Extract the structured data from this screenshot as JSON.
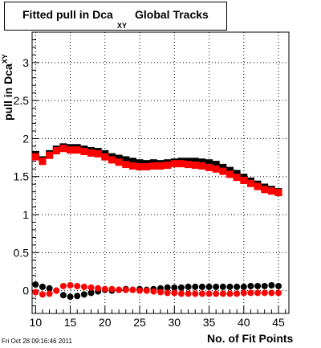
{
  "title": {
    "main": "Fitted pull in Dca",
    "subscript": "XY",
    "rest": "Global Tracks"
  },
  "timestamp": "Fri Oct 28 09:16:46 2011",
  "chart_data": {
    "type": "scatter",
    "title": "Fitted pull in Dca XY Global Tracks",
    "xlabel": "No. of Fit Points",
    "ylabel": "pull in Dca",
    "ylabel_subscript": "XY",
    "xlim": [
      9.5,
      46.5
    ],
    "ylim": [
      -0.3,
      3.4
    ],
    "xticks": [
      10,
      15,
      20,
      25,
      30,
      35,
      40,
      45
    ],
    "yticks": [
      0,
      0.5,
      1,
      1.5,
      2,
      2.5,
      3
    ],
    "ytick_labels": [
      "0",
      "0.5",
      "1",
      "1.5",
      "2",
      "2.5",
      "3"
    ],
    "grid": true,
    "x": [
      10,
      11,
      12,
      13,
      14,
      15,
      16,
      17,
      18,
      19,
      20,
      21,
      22,
      23,
      24,
      25,
      26,
      27,
      28,
      29,
      30,
      31,
      32,
      33,
      34,
      35,
      36,
      37,
      38,
      39,
      40,
      41,
      42,
      43,
      44,
      45
    ],
    "series": [
      {
        "color": "#000000",
        "values": [
          1.79,
          1.72,
          1.8,
          1.86,
          1.89,
          1.88,
          1.88,
          1.86,
          1.84,
          1.83,
          1.8,
          1.76,
          1.74,
          1.72,
          1.7,
          1.68,
          1.67,
          1.68,
          1.67,
          1.68,
          1.69,
          1.7,
          1.7,
          1.7,
          1.69,
          1.68,
          1.66,
          1.62,
          1.58,
          1.54,
          1.49,
          1.44,
          1.4,
          1.36,
          1.33,
          1.3
        ]
      },
      {
        "color": "#ff0000",
        "values": [
          1.76,
          1.7,
          1.78,
          1.84,
          1.87,
          1.85,
          1.85,
          1.83,
          1.81,
          1.8,
          1.76,
          1.72,
          1.69,
          1.66,
          1.64,
          1.63,
          1.63,
          1.64,
          1.64,
          1.65,
          1.67,
          1.67,
          1.66,
          1.65,
          1.64,
          1.62,
          1.6,
          1.57,
          1.53,
          1.49,
          1.45,
          1.41,
          1.37,
          1.33,
          1.31,
          1.29
        ]
      },
      {
        "color": "#000000",
        "values": [
          0.08,
          0.05,
          0.03,
          0.0,
          -0.06,
          -0.08,
          -0.07,
          -0.05,
          -0.03,
          -0.01,
          0.01,
          0.0,
          0.01,
          0.02,
          0.01,
          0.02,
          0.01,
          0.02,
          0.03,
          0.04,
          0.04,
          0.04,
          0.05,
          0.05,
          0.05,
          0.05,
          0.05,
          0.05,
          0.05,
          0.05,
          0.05,
          0.06,
          0.06,
          0.06,
          0.07,
          0.06
        ]
      },
      {
        "color": "#ff0000",
        "values": [
          -0.02,
          -0.05,
          -0.04,
          0.0,
          0.06,
          0.07,
          0.06,
          0.05,
          0.04,
          0.03,
          0.02,
          0.02,
          0.01,
          0.01,
          0.01,
          0.0,
          0.0,
          -0.01,
          -0.02,
          -0.03,
          -0.03,
          -0.04,
          -0.04,
          -0.04,
          -0.04,
          -0.04,
          -0.04,
          -0.04,
          -0.04,
          -0.04,
          -0.03,
          -0.03,
          -0.03,
          -0.03,
          -0.03,
          -0.03
        ]
      }
    ]
  }
}
